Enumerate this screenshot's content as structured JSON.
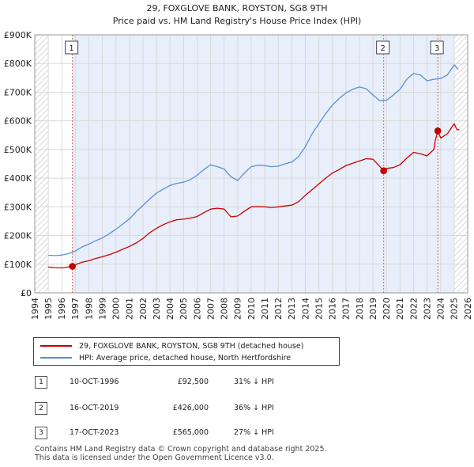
{
  "chart_data": {
    "type": "line",
    "title": "29, FOXGLOVE BANK, ROYSTON, SG8 9TH",
    "subtitle": "Price paid vs. HM Land Registry's House Price Index (HPI)",
    "xlim": [
      1994,
      2026
    ],
    "ylim": [
      0,
      900000
    ],
    "x_ticks": [
      1994,
      1995,
      1996,
      1997,
      1998,
      1999,
      2000,
      2001,
      2002,
      2003,
      2004,
      2005,
      2006,
      2007,
      2008,
      2009,
      2010,
      2011,
      2012,
      2013,
      2014,
      2015,
      2016,
      2017,
      2018,
      2019,
      2020,
      2021,
      2022,
      2023,
      2024,
      2025,
      2026
    ],
    "y_ticks": [
      {
        "value": 0,
        "label": "£0"
      },
      {
        "value": 100000,
        "label": "£100K"
      },
      {
        "value": 200000,
        "label": "£200K"
      },
      {
        "value": 300000,
        "label": "£300K"
      },
      {
        "value": 400000,
        "label": "£400K"
      },
      {
        "value": 500000,
        "label": "£500K"
      },
      {
        "value": 600000,
        "label": "£600K"
      },
      {
        "value": 700000,
        "label": "£700K"
      },
      {
        "value": 800000,
        "label": "£800K"
      },
      {
        "value": 900000,
        "label": "£900K"
      }
    ],
    "series": [
      {
        "name": "29, FOXGLOVE BANK, ROYSTON, SG8 9TH (detached house)",
        "color": "#cc0000",
        "x": [
          1995.0,
          1995.5,
          1996.0,
          1996.78,
          1997.0,
          1997.5,
          1998.0,
          1998.5,
          1999.0,
          1999.5,
          2000.0,
          2000.5,
          2001.0,
          2001.5,
          2002.0,
          2002.5,
          2003.0,
          2003.5,
          2004.0,
          2004.5,
          2005.0,
          2005.5,
          2006.0,
          2006.5,
          2007.0,
          2007.5,
          2008.0,
          2008.5,
          2009.0,
          2009.5,
          2010.0,
          2010.5,
          2011.0,
          2011.5,
          2012.0,
          2012.5,
          2013.0,
          2013.5,
          2014.0,
          2014.5,
          2015.0,
          2015.5,
          2016.0,
          2016.5,
          2017.0,
          2017.5,
          2018.0,
          2018.5,
          2019.0,
          2019.79,
          2020.0,
          2020.5,
          2021.0,
          2021.5,
          2022.0,
          2022.5,
          2023.0,
          2023.5,
          2023.6,
          2023.79,
          2024.0,
          2024.5,
          2025.0,
          2025.2,
          2025.4
        ],
        "y": [
          90000,
          88000,
          87000,
          92500,
          98000,
          107000,
          112000,
          120000,
          126000,
          133000,
          142000,
          152000,
          162000,
          174000,
          190000,
          210000,
          225000,
          238000,
          248000,
          255000,
          257000,
          261000,
          266000,
          280000,
          292000,
          295000,
          292000,
          265000,
          268000,
          285000,
          300000,
          301000,
          300000,
          298000,
          300000,
          303000,
          306000,
          318000,
          340000,
          360000,
          380000,
          400000,
          418000,
          430000,
          444000,
          452000,
          460000,
          468000,
          466000,
          426000,
          434000,
          437000,
          447000,
          470000,
          490000,
          485000,
          478000,
          500000,
          530000,
          565000,
          540000,
          555000,
          590000,
          570000,
          568000
        ]
      },
      {
        "name": "HPI: Average price, detached house, North Hertfordshire",
        "color": "#5b8fd4",
        "x": [
          1995.0,
          1995.5,
          1996.0,
          1996.5,
          1997.0,
          1997.5,
          1998.0,
          1998.5,
          1999.0,
          1999.5,
          2000.0,
          2000.5,
          2001.0,
          2001.5,
          2002.0,
          2002.5,
          2003.0,
          2003.5,
          2004.0,
          2004.5,
          2005.0,
          2005.5,
          2006.0,
          2006.5,
          2007.0,
          2007.5,
          2008.0,
          2008.5,
          2009.0,
          2009.5,
          2010.0,
          2010.5,
          2011.0,
          2011.5,
          2012.0,
          2012.5,
          2013.0,
          2013.5,
          2014.0,
          2014.5,
          2015.0,
          2015.5,
          2016.0,
          2016.5,
          2017.0,
          2017.5,
          2018.0,
          2018.5,
          2019.0,
          2019.5,
          2020.0,
          2020.5,
          2021.0,
          2021.5,
          2022.0,
          2022.5,
          2023.0,
          2023.5,
          2024.0,
          2024.5,
          2025.0,
          2025.3
        ],
        "y": [
          131000,
          130000,
          132000,
          137000,
          146000,
          160000,
          170000,
          182000,
          192000,
          206000,
          222000,
          240000,
          258000,
          283000,
          305000,
          328000,
          348000,
          362000,
          375000,
          382000,
          386000,
          395000,
          410000,
          430000,
          447000,
          440000,
          432000,
          405000,
          392000,
          418000,
          440000,
          445000,
          444000,
          440000,
          442000,
          450000,
          456000,
          475000,
          510000,
          555000,
          590000,
          625000,
          655000,
          678000,
          697000,
          710000,
          718000,
          712000,
          690000,
          670000,
          672000,
          690000,
          710000,
          745000,
          765000,
          760000,
          740000,
          745000,
          748000,
          760000,
          795000,
          780000
        ]
      }
    ],
    "sales": [
      {
        "label": "1",
        "date": "10-OCT-1996",
        "x": 1996.78,
        "price": 92500,
        "price_text": "£92,500",
        "hpi": "31% ↓ HPI"
      },
      {
        "label": "2",
        "date": "16-OCT-2019",
        "x": 2019.79,
        "price": 426000,
        "price_text": "£426,000",
        "hpi": "36% ↓ HPI"
      },
      {
        "label": "3",
        "date": "17-OCT-2023",
        "x": 2023.79,
        "price": 565000,
        "price_text": "£565,000",
        "hpi": "27% ↓ HPI"
      }
    ],
    "hatched_ranges": [
      [
        1994,
        1995.0
      ],
      [
        2025.0,
        2026
      ]
    ],
    "shaded_range": [
      1996.78,
      2025.0
    ]
  },
  "footer": {
    "line1": "Contains HM Land Registry data © Crown copyright and database right 2025.",
    "line2": "This data is licensed under the Open Government Licence v3.0."
  },
  "colors": {
    "price_line": "#cc0000",
    "hpi_line": "#5b8fd4",
    "shade": "#e8eefa",
    "vline": "#e06666"
  }
}
